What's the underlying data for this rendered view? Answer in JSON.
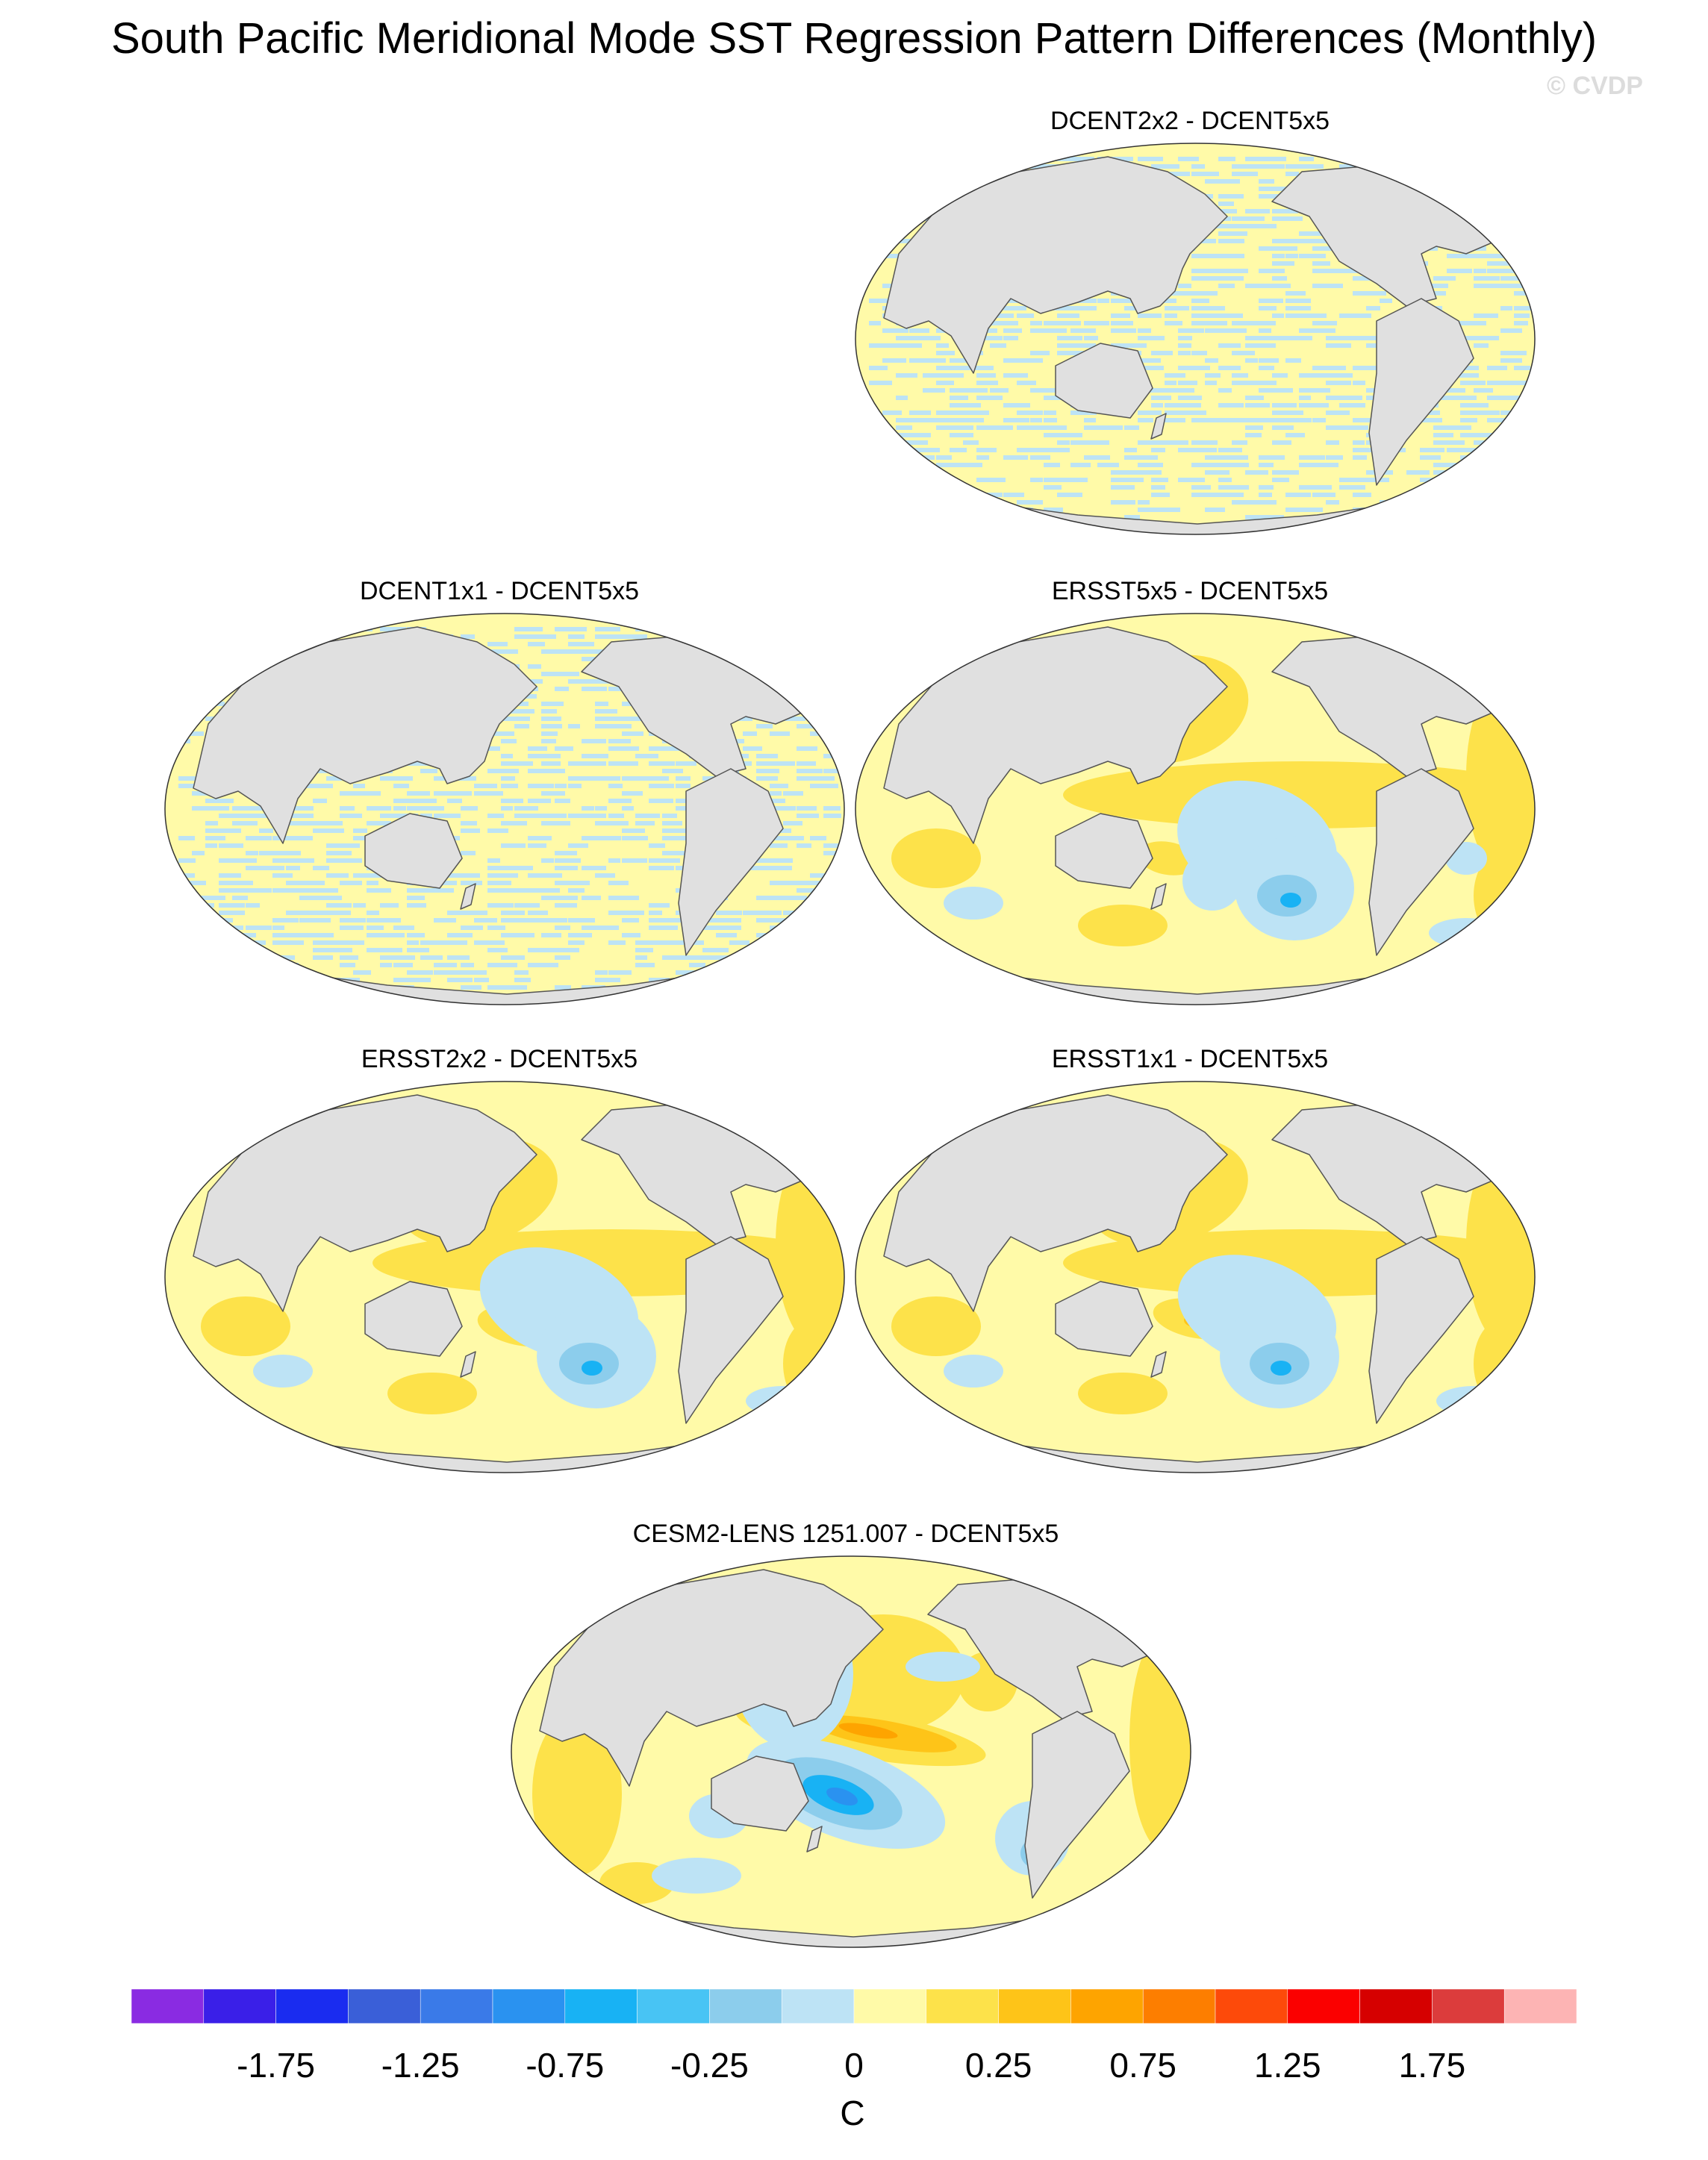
{
  "title": "South Pacific Meridional Mode SST Regression Pattern Differences (Monthly)",
  "watermark": "© CVDP",
  "colors": {
    "land": "#e0e0e0",
    "ocean_neutral": "#fffaa8",
    "coast": "#555555"
  },
  "chart_data": {
    "type": "heatmap",
    "projection": "Robinson (Pacific-centered)",
    "units": "C",
    "colorbar": {
      "tick_labels": [
        "-1.75",
        "-1.25",
        "-0.75",
        "-0.25",
        "0",
        "0.25",
        "0.75",
        "1.25",
        "1.75"
      ],
      "levels": [
        -2.0,
        -1.75,
        -1.5,
        -1.25,
        -1.0,
        -0.75,
        -0.5,
        -0.25,
        -0.1,
        0,
        0.1,
        0.25,
        0.5,
        0.75,
        1.0,
        1.25,
        1.5,
        1.75,
        2.0
      ],
      "colors": [
        "#8a2be2",
        "#3a1fe8",
        "#1a2cf0",
        "#3a5fd8",
        "#3a7ae8",
        "#2a92f0",
        "#18b2f4",
        "#48c4f4",
        "#8ccdec",
        "#bde3f5",
        "#fffaa8",
        "#fde24a",
        "#fec418",
        "#fea400",
        "#fd7e00",
        "#fd4a0a",
        "#fb0000",
        "#d60000",
        "#dc3c3c",
        "#fdb4b4"
      ]
    },
    "panels": [
      {
        "title": "DCENT2x2 - DCENT5x5",
        "pattern": "striped",
        "max_abs": 0.1
      },
      {
        "title": "DCENT1x1 - DCENT5x5",
        "pattern": "striped",
        "max_abs": 0.1
      },
      {
        "title": "ERSST5x5 - DCENT5x5",
        "pattern": "smooth",
        "min": -0.75,
        "max": 0.5
      },
      {
        "title": "ERSST2x2 - DCENT5x5",
        "pattern": "smooth",
        "min": -0.75,
        "max": 0.75
      },
      {
        "title": "ERSST1x1 - DCENT5x5",
        "pattern": "smooth",
        "min": -0.75,
        "max": 0.5
      },
      {
        "title": "CESM2-LENS 1251.007 - DCENT5x5",
        "pattern": "smooth",
        "min": -1.25,
        "max": 0.75
      }
    ]
  }
}
